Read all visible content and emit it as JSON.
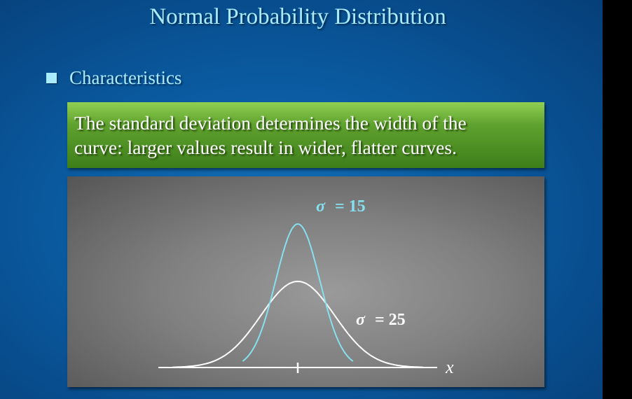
{
  "slide": {
    "title": "Normal Probability Distribution",
    "bullet": "Characteristics",
    "callout_line1": "The standard deviation determines the width of the",
    "callout_line2": "curve: larger values result in wider, flatter curves."
  },
  "colors": {
    "background": "#0a5aa0",
    "title_text": "#a9ecff",
    "callout_green": "#5fa12e",
    "panel_gray": "#808080",
    "narrow_curve": "#86e0f0",
    "wide_curve": "#ffffff"
  },
  "chart_data": {
    "type": "line",
    "xlabel": "x",
    "series": [
      {
        "name": "σ = 15",
        "sigma_symbol": "σ",
        "sigma_value": "= 15",
        "sigma": 15,
        "color": "#86e0f0"
      },
      {
        "name": "σ = 25",
        "sigma_symbol": "σ",
        "sigma_value": "= 25",
        "sigma": 25,
        "color": "#ffffff"
      }
    ],
    "mean_tick": true
  }
}
